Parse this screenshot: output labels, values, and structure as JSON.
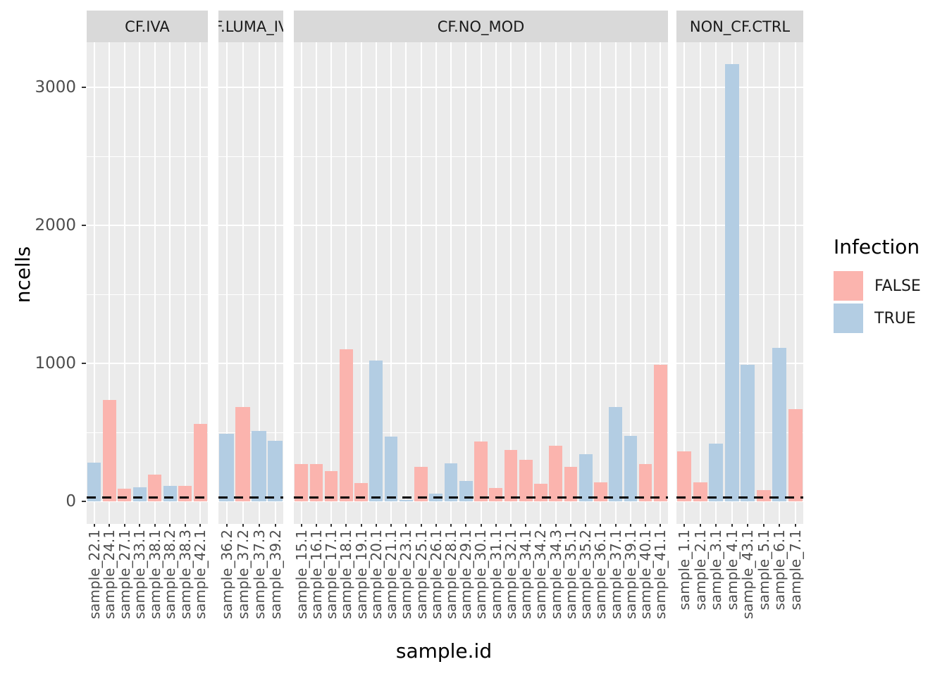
{
  "axes": {
    "x_title": "sample.id",
    "y_title": "ncells",
    "y_tick_labels": [
      "0",
      "1000",
      "2000",
      "3000"
    ]
  },
  "legend": {
    "title": "Infection",
    "items": [
      {
        "label": "FALSE",
        "color": "#FBB4AE"
      },
      {
        "label": "TRUE",
        "color": "#B3CDE3"
      }
    ]
  },
  "colors": {
    "panel_bg": "#EBEBEB",
    "strip_bg": "#D9D9D9",
    "grid": "#FFFFFF",
    "axis_text": "#4D4D4D",
    "false_color": "#FBB4AE",
    "true_color": "#B3CDE3",
    "threshold_line": "#000000"
  },
  "chart_data": {
    "type": "bar",
    "title": "",
    "xlabel": "sample.id",
    "ylabel": "ncells",
    "ylim": [
      0,
      3350
    ],
    "y_major_ticks": [
      0,
      1000,
      2000,
      3000
    ],
    "y_minor_gridlines": [
      500,
      1500,
      2500
    ],
    "grid": true,
    "legend_position": "right",
    "threshold_dashed_line_y": 30,
    "facets": [
      {
        "title": "CF.IVA",
        "samples": [
          {
            "id": "sample_22.1",
            "infection": "TRUE",
            "ncells": 280
          },
          {
            "id": "sample_24.1",
            "infection": "FALSE",
            "ncells": 735
          },
          {
            "id": "sample_27.1",
            "infection": "FALSE",
            "ncells": 90
          },
          {
            "id": "sample_33.1",
            "infection": "TRUE",
            "ncells": 100
          },
          {
            "id": "sample_38.1",
            "infection": "FALSE",
            "ncells": 195
          },
          {
            "id": "sample_38.2",
            "infection": "TRUE",
            "ncells": 110
          },
          {
            "id": "sample_38.3",
            "infection": "FALSE",
            "ncells": 110
          },
          {
            "id": "sample_42.1",
            "infection": "FALSE",
            "ncells": 560
          }
        ]
      },
      {
        "title": "CF.LUMA_IVA",
        "samples": [
          {
            "id": "sample_36.2",
            "infection": "TRUE",
            "ncells": 490
          },
          {
            "id": "sample_37.2",
            "infection": "FALSE",
            "ncells": 685
          },
          {
            "id": "sample_37.3",
            "infection": "TRUE",
            "ncells": 510
          },
          {
            "id": "sample_39.2",
            "infection": "TRUE",
            "ncells": 440
          }
        ]
      },
      {
        "title": "CF.NO_MOD",
        "samples": [
          {
            "id": "sample_15.1",
            "infection": "FALSE",
            "ncells": 270
          },
          {
            "id": "sample_16.1",
            "infection": "FALSE",
            "ncells": 270
          },
          {
            "id": "sample_17.1",
            "infection": "FALSE",
            "ncells": 220
          },
          {
            "id": "sample_18.1",
            "infection": "FALSE",
            "ncells": 1100
          },
          {
            "id": "sample_19.1",
            "infection": "FALSE",
            "ncells": 135
          },
          {
            "id": "sample_20.1",
            "infection": "TRUE",
            "ncells": 1020
          },
          {
            "id": "sample_21.1",
            "infection": "TRUE",
            "ncells": 470
          },
          {
            "id": "sample_23.1",
            "infection": "TRUE",
            "ncells": 8
          },
          {
            "id": "sample_25.1",
            "infection": "FALSE",
            "ncells": 250
          },
          {
            "id": "sample_26.1",
            "infection": "TRUE",
            "ncells": 55
          },
          {
            "id": "sample_28.1",
            "infection": "TRUE",
            "ncells": 275
          },
          {
            "id": "sample_29.1",
            "infection": "TRUE",
            "ncells": 150
          },
          {
            "id": "sample_30.1",
            "infection": "FALSE",
            "ncells": 435
          },
          {
            "id": "sample_31.1",
            "infection": "FALSE",
            "ncells": 95
          },
          {
            "id": "sample_32.1",
            "infection": "FALSE",
            "ncells": 370
          },
          {
            "id": "sample_34.1",
            "infection": "FALSE",
            "ncells": 300
          },
          {
            "id": "sample_34.2",
            "infection": "FALSE",
            "ncells": 130
          },
          {
            "id": "sample_34.3",
            "infection": "FALSE",
            "ncells": 405
          },
          {
            "id": "sample_35.1",
            "infection": "FALSE",
            "ncells": 250
          },
          {
            "id": "sample_35.2",
            "infection": "TRUE",
            "ncells": 340
          },
          {
            "id": "sample_36.1",
            "infection": "FALSE",
            "ncells": 140
          },
          {
            "id": "sample_37.1",
            "infection": "TRUE",
            "ncells": 685
          },
          {
            "id": "sample_39.1",
            "infection": "TRUE",
            "ncells": 475
          },
          {
            "id": "sample_40.1",
            "infection": "FALSE",
            "ncells": 270
          },
          {
            "id": "sample_41.1",
            "infection": "FALSE",
            "ncells": 990
          }
        ]
      },
      {
        "title": "NON_CF.CTRL",
        "samples": [
          {
            "id": "sample_1.1",
            "infection": "FALSE",
            "ncells": 360
          },
          {
            "id": "sample_2.1",
            "infection": "FALSE",
            "ncells": 140
          },
          {
            "id": "sample_3.1",
            "infection": "TRUE",
            "ncells": 420
          },
          {
            "id": "sample_4.1",
            "infection": "TRUE",
            "ncells": 3170
          },
          {
            "id": "sample_43.1",
            "infection": "TRUE",
            "ncells": 990
          },
          {
            "id": "sample_5.1",
            "infection": "FALSE",
            "ncells": 80
          },
          {
            "id": "sample_6.1",
            "infection": "TRUE",
            "ncells": 1110
          },
          {
            "id": "sample_7.1",
            "infection": "FALSE",
            "ncells": 670
          }
        ]
      }
    ]
  }
}
